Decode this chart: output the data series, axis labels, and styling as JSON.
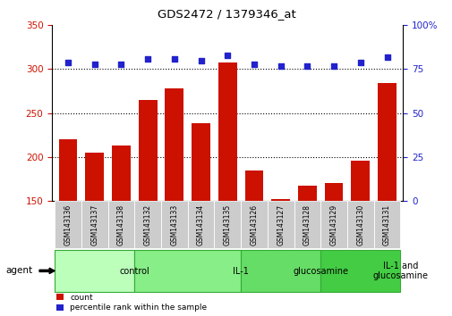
{
  "title": "GDS2472 / 1379346_at",
  "samples": [
    "GSM143136",
    "GSM143137",
    "GSM143138",
    "GSM143132",
    "GSM143133",
    "GSM143134",
    "GSM143135",
    "GSM143126",
    "GSM143127",
    "GSM143128",
    "GSM143129",
    "GSM143130",
    "GSM143131"
  ],
  "counts": [
    220,
    205,
    213,
    265,
    278,
    238,
    308,
    184,
    152,
    167,
    170,
    196,
    284
  ],
  "percentiles": [
    79,
    78,
    78,
    81,
    81,
    80,
    83,
    78,
    77,
    77,
    77,
    79,
    82
  ],
  "groups": [
    {
      "label": "control",
      "start": 0,
      "end": 3,
      "color": "#bbffbb"
    },
    {
      "label": "IL-1",
      "start": 3,
      "end": 7,
      "color": "#88ee88"
    },
    {
      "label": "glucosamine",
      "start": 7,
      "end": 10,
      "color": "#66dd66"
    },
    {
      "label": "IL-1 and\nglucosamine",
      "start": 10,
      "end": 13,
      "color": "#44cc44"
    }
  ],
  "ylim_left": [
    150,
    350
  ],
  "ylim_right": [
    0,
    100
  ],
  "yticks_left": [
    150,
    200,
    250,
    300,
    350
  ],
  "yticks_right": [
    0,
    25,
    50,
    75,
    100
  ],
  "bar_color": "#cc1100",
  "dot_color": "#2222cc",
  "background_color": "#ffffff",
  "agent_label": "agent",
  "tick_label_color": "#333333",
  "tick_bg_color": "#cccccc",
  "group_border_color": "#33aa33"
}
